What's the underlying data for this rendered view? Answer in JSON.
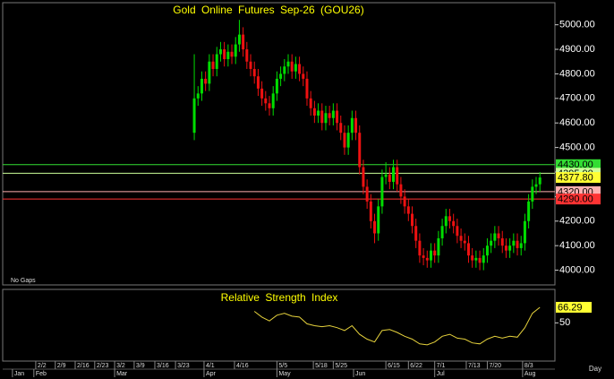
{
  "chart_data": [
    {
      "type": "candlestick",
      "title": "Gold Online Futures Sep-26 (GOU26)",
      "annotation": "No Gaps",
      "x_label": "Day",
      "up_color": "#00dd00",
      "down_color": "#ee1111",
      "xlim": [
        0,
        147
      ],
      "ylim": [
        3940,
        5090
      ],
      "yticks": [
        {
          "value": 4000,
          "label": "4000.00"
        },
        {
          "value": 4100,
          "label": "4100.00"
        },
        {
          "value": 4200,
          "label": "4200.00"
        },
        {
          "value": 4300,
          "label": "4300.00"
        },
        {
          "value": 4400,
          "label": "4400.00"
        },
        {
          "value": 4500,
          "label": "4500.00"
        },
        {
          "value": 4600,
          "label": "4600.00"
        },
        {
          "value": 4700,
          "label": "4700.00"
        },
        {
          "value": 4800,
          "label": "4800.00"
        },
        {
          "value": 4900,
          "label": "4900.00"
        },
        {
          "value": 5000,
          "label": "5000.00"
        }
      ],
      "xticks": [
        {
          "value": 8.8,
          "label": "2/2"
        },
        {
          "value": 14,
          "label": "2/9"
        },
        {
          "value": 19.3,
          "label": "2/16"
        },
        {
          "value": 24.5,
          "label": "2/23"
        },
        {
          "value": 29.8,
          "label": "3/2"
        },
        {
          "value": 35,
          "label": "3/9"
        },
        {
          "value": 40.5,
          "label": "3/16"
        },
        {
          "value": 46,
          "label": "3/23"
        },
        {
          "value": 53.6,
          "label": "4/1"
        },
        {
          "value": 61.7,
          "label": "4/16"
        },
        {
          "value": 73,
          "label": "5/5"
        },
        {
          "value": 82.7,
          "label": "5/18"
        },
        {
          "value": 88,
          "label": "5/25"
        },
        {
          "value": 102,
          "label": "6/15"
        },
        {
          "value": 108,
          "label": "6/22"
        },
        {
          "value": 115,
          "label": "7/1"
        },
        {
          "value": 123.4,
          "label": "7/13"
        },
        {
          "value": 129,
          "label": "7/20"
        },
        {
          "value": 138.4,
          "label": "8/3"
        }
      ],
      "month_ticks": [
        {
          "value": 2.6,
          "label": "Jan"
        },
        {
          "value": 8.3,
          "label": "Feb"
        },
        {
          "value": 29.8,
          "label": "Mar"
        },
        {
          "value": 53.6,
          "label": "Apr"
        },
        {
          "value": 73,
          "label": "May"
        },
        {
          "value": 93.4,
          "label": "Jun"
        },
        {
          "value": 115,
          "label": "Jul"
        },
        {
          "value": 138.4,
          "label": "Aug"
        }
      ],
      "levels": [
        {
          "value": 4430,
          "label": "4430.00",
          "color": "#33dd33",
          "line": true
        },
        {
          "value": 4395,
          "label": "4395.00",
          "color": "#ccff99",
          "line": true
        },
        {
          "value": 4377.8,
          "label": "4377.80",
          "color": "#ffff33",
          "line": false
        },
        {
          "value": 4320,
          "label": "4320.00",
          "color": "#ffb0b0",
          "line": true
        },
        {
          "value": 4290,
          "label": "4290.00",
          "color": "#ff3333",
          "line": true
        }
      ],
      "x": [
        51,
        52,
        53,
        54,
        55,
        56,
        57,
        58,
        59,
        60,
        61,
        62,
        63,
        64,
        65,
        66,
        67,
        68,
        69,
        70,
        71,
        72,
        73,
        74,
        75,
        76,
        77,
        78,
        79,
        80,
        81,
        82,
        83,
        84,
        85,
        86,
        87,
        88,
        89,
        90,
        91,
        92,
        93,
        94,
        95,
        96,
        97,
        98,
        99,
        100,
        101,
        102,
        103,
        104,
        105,
        106,
        107,
        108,
        109,
        110,
        111,
        112,
        113,
        114,
        115,
        116,
        117,
        118,
        119,
        120,
        121,
        122,
        123,
        124,
        125,
        126,
        127,
        128,
        129,
        130,
        131,
        132,
        133,
        134,
        135,
        136,
        137,
        138,
        139,
        140,
        141,
        142,
        143
      ],
      "open": [
        4560,
        4700,
        4720,
        4780,
        4760,
        4850,
        4820,
        4880,
        4900,
        4860,
        4890,
        4870,
        4920,
        4960,
        4900,
        4850,
        4820,
        4790,
        4740,
        4700,
        4680,
        4660,
        4720,
        4780,
        4800,
        4830,
        4850,
        4810,
        4840,
        4800,
        4780,
        4700,
        4660,
        4630,
        4650,
        4600,
        4640,
        4620,
        4650,
        4600,
        4560,
        4500,
        4560,
        4620,
        4560,
        4420,
        4340,
        4280,
        4200,
        4150,
        4260,
        4380,
        4390,
        4360,
        4420,
        4350,
        4300,
        4260,
        4230,
        4180,
        4120,
        4060,
        4050,
        4040,
        4080,
        4060,
        4130,
        4180,
        4220,
        4200,
        4180,
        4140,
        4120,
        4110,
        4060,
        4040,
        4050,
        4030,
        4060,
        4100,
        4120,
        4150,
        4130,
        4100,
        4080,
        4100,
        4120,
        4090,
        4110,
        4200,
        4280,
        4340,
        4350
      ],
      "high": [
        4880,
        4750,
        4810,
        4810,
        4880,
        4880,
        4910,
        4930,
        4930,
        4920,
        4920,
        4950,
        5020,
        4990,
        4930,
        4880,
        4850,
        4820,
        4770,
        4730,
        4710,
        4750,
        4810,
        4830,
        4860,
        4880,
        4880,
        4870,
        4870,
        4830,
        4810,
        4730,
        4690,
        4680,
        4680,
        4670,
        4670,
        4680,
        4680,
        4630,
        4590,
        4590,
        4650,
        4650,
        4590,
        4450,
        4370,
        4310,
        4230,
        4290,
        4410,
        4440,
        4420,
        4450,
        4450,
        4380,
        4330,
        4290,
        4260,
        4210,
        4150,
        4090,
        4080,
        4110,
        4110,
        4160,
        4210,
        4250,
        4250,
        4230,
        4210,
        4170,
        4150,
        4140,
        4090,
        4080,
        4080,
        4090,
        4130,
        4150,
        4180,
        4180,
        4160,
        4130,
        4130,
        4150,
        4150,
        4140,
        4230,
        4310,
        4370,
        4380,
        4400
      ],
      "low": [
        4530,
        4670,
        4690,
        4730,
        4730,
        4790,
        4790,
        4850,
        4830,
        4830,
        4840,
        4840,
        4890,
        4870,
        4820,
        4790,
        4760,
        4710,
        4670,
        4650,
        4630,
        4630,
        4690,
        4750,
        4770,
        4800,
        4780,
        4780,
        4770,
        4750,
        4670,
        4630,
        4600,
        4600,
        4570,
        4570,
        4590,
        4590,
        4570,
        4530,
        4470,
        4470,
        4530,
        4530,
        4390,
        4310,
        4250,
        4170,
        4110,
        4120,
        4230,
        4350,
        4330,
        4330,
        4320,
        4270,
        4230,
        4200,
        4150,
        4090,
        4030,
        4020,
        4010,
        4010,
        4030,
        4030,
        4100,
        4150,
        4170,
        4150,
        4110,
        4090,
        4080,
        4030,
        4010,
        4010,
        4000,
        4000,
        4030,
        4070,
        4090,
        4100,
        4070,
        4050,
        4050,
        4070,
        4060,
        4060,
        4080,
        4170,
        4250,
        4310,
        4320
      ],
      "close": [
        4700,
        4720,
        4780,
        4760,
        4850,
        4820,
        4880,
        4900,
        4860,
        4890,
        4870,
        4920,
        4960,
        4900,
        4850,
        4820,
        4790,
        4740,
        4700,
        4680,
        4660,
        4720,
        4780,
        4800,
        4830,
        4850,
        4810,
        4840,
        4800,
        4780,
        4700,
        4660,
        4630,
        4650,
        4600,
        4640,
        4620,
        4650,
        4600,
        4560,
        4500,
        4560,
        4620,
        4560,
        4420,
        4340,
        4280,
        4200,
        4150,
        4260,
        4380,
        4390,
        4360,
        4420,
        4350,
        4300,
        4260,
        4230,
        4180,
        4120,
        4060,
        4050,
        4040,
        4080,
        4060,
        4130,
        4180,
        4220,
        4200,
        4180,
        4140,
        4120,
        4110,
        4060,
        4040,
        4050,
        4030,
        4060,
        4100,
        4120,
        4150,
        4130,
        4100,
        4080,
        4100,
        4120,
        4090,
        4110,
        4200,
        4280,
        4340,
        4350,
        4377.8
      ]
    },
    {
      "type": "line",
      "title": "Relative Strength Index",
      "color": "#e6d23c",
      "tag_color": "#ffff33",
      "xlim": [
        0,
        147
      ],
      "ylim": [
        10,
        85
      ],
      "yticks": [
        50
      ],
      "x": [
        67,
        69,
        71,
        73,
        75,
        77,
        79,
        81,
        83,
        85,
        87,
        89,
        91,
        93,
        95,
        97,
        99,
        101,
        103,
        105,
        107,
        109,
        111,
        113,
        115,
        117,
        119,
        121,
        123,
        125,
        127,
        129,
        131,
        133,
        135,
        137,
        139,
        141,
        143
      ],
      "values": [
        62,
        56,
        52,
        58,
        60,
        57,
        56,
        49,
        47,
        46,
        47,
        45,
        42,
        47,
        38,
        33,
        30,
        42,
        43,
        40,
        36,
        33,
        28,
        27,
        30,
        36,
        38,
        34,
        33,
        29,
        28,
        33,
        36,
        34,
        36,
        35,
        45,
        60,
        66.29
      ]
    }
  ]
}
